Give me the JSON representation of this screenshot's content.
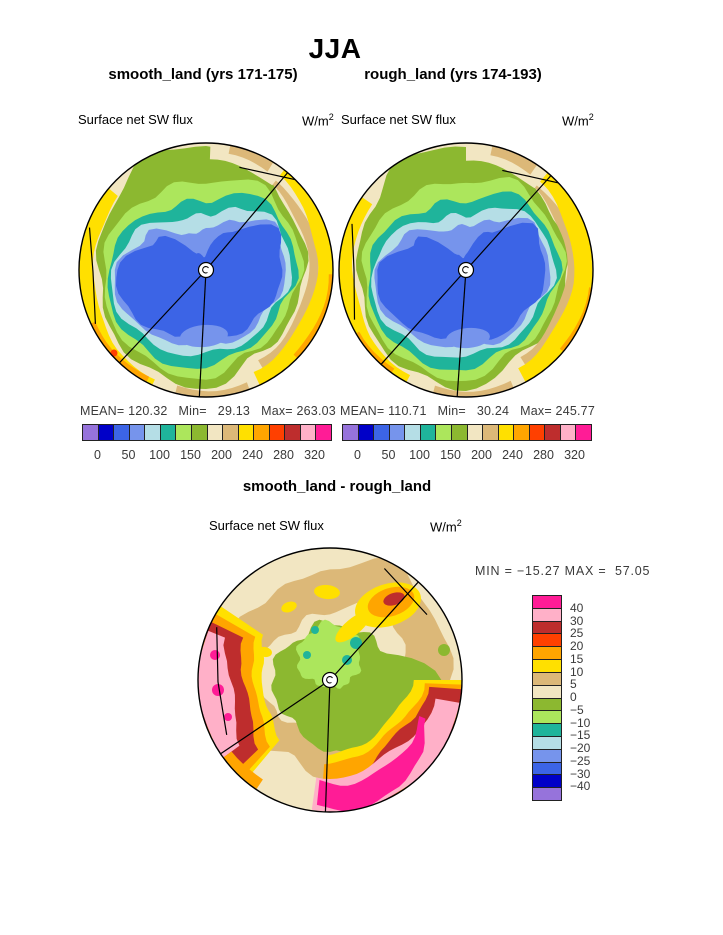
{
  "title": "JJA",
  "panels": {
    "left": {
      "subtitle": "smooth_land (yrs 171-175)",
      "var_label": "Surface net SW flux",
      "units_base": "W/m",
      "units_exp": "2",
      "stats_line": "MEAN= 120.32   Min=   29.13   Max= 263.03"
    },
    "right": {
      "subtitle": "rough_land (yrs 174-193)",
      "var_label": "Surface net SW flux",
      "units_base": "W/m",
      "units_exp": "2",
      "stats_line": "MEAN= 110.71   Min=   30.24   Max= 245.77"
    },
    "diff": {
      "title": "smooth_land - rough_land",
      "var_label": "Surface net SW flux",
      "units_base": "W/m",
      "units_exp": "2",
      "minmax_line": "MIN = −15.27 MAX =  57.05"
    }
  },
  "colorbar": {
    "palette": [
      "#9673DB",
      "#0000C8",
      "#3C64E6",
      "#7694EC",
      "#B5DEE6",
      "#1FB49B",
      "#ACE65C",
      "#8CB830",
      "#F2E6C2",
      "#DCB878",
      "#FFE000",
      "#FFA500",
      "#FF4000",
      "#BE2D2D",
      "#FFB0C8",
      "#FF1C96"
    ],
    "h_ticks": [
      {
        "label": "0",
        "boundary": 1
      },
      {
        "label": "50",
        "boundary": 3
      },
      {
        "label": "100",
        "boundary": 5
      },
      {
        "label": "150",
        "boundary": 7
      },
      {
        "label": "200",
        "boundary": 9
      },
      {
        "label": "240",
        "boundary": 11
      },
      {
        "label": "280",
        "boundary": 13
      },
      {
        "label": "320",
        "boundary": 15
      }
    ],
    "v_labels": [
      "40",
      "30",
      "25",
      "20",
      "15",
      "10",
      "5",
      "0",
      "−5",
      "−10",
      "−15",
      "−20",
      "−25",
      "−30",
      "−40"
    ]
  },
  "chart_data": [
    {
      "type": "heatmap",
      "subtype": "filled-contour polar map",
      "season": "JJA",
      "title": "smooth_land (yrs 171-175)",
      "variable": "Surface net SW flux",
      "units": "W/m^2",
      "stats": {
        "mean": 120.32,
        "min": 29.13,
        "max": 263.03
      },
      "contour_levels": [
        0,
        25,
        50,
        75,
        100,
        125,
        150,
        175,
        200,
        220,
        240,
        260,
        280,
        300,
        320
      ],
      "colorbar_tick_labels": [
        0,
        50,
        100,
        150,
        200,
        240,
        280,
        320
      ],
      "legend_position": "bottom",
      "pattern": "low values (blue, ~50-100) over the pole center, increasing outward through teal/green (~100-175) to cream/tan/yellow/orange (~200-280) at the map edge"
    },
    {
      "type": "heatmap",
      "subtype": "filled-contour polar map",
      "season": "JJA",
      "title": "rough_land (yrs 174-193)",
      "variable": "Surface net SW flux",
      "units": "W/m^2",
      "stats": {
        "mean": 110.71,
        "min": 30.24,
        "max": 245.77
      },
      "contour_levels": [
        0,
        25,
        50,
        75,
        100,
        125,
        150,
        175,
        200,
        220,
        240,
        260,
        280,
        300,
        320
      ],
      "colorbar_tick_labels": [
        0,
        50,
        100,
        150,
        200,
        240,
        280,
        320
      ],
      "legend_position": "bottom",
      "pattern": "same ring structure as smooth_land with slightly wider yellow band at the rim"
    },
    {
      "type": "heatmap",
      "subtype": "filled-contour polar difference map",
      "season": "JJA",
      "title": "smooth_land - rough_land",
      "variable": "Surface net SW flux",
      "units": "W/m^2",
      "stats": {
        "min": -15.27,
        "max": 57.05
      },
      "contour_levels": [
        40,
        30,
        25,
        20,
        15,
        10,
        5,
        0,
        -5,
        -10,
        -15,
        -20,
        -25,
        -30,
        -40
      ],
      "legend_position": "right",
      "pattern": "near-zero (cream/tan) over most of the disc, negative (green, -5 to -10) blob at center, strong positive (pink/magenta up to ~57) crescents at lower-left and bottom-right rims, positive orange/red spot at upper right"
    }
  ]
}
